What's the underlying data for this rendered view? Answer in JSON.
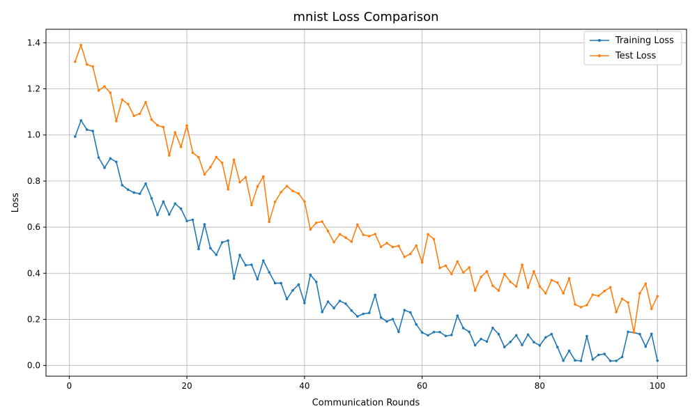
{
  "chart_data": {
    "type": "line",
    "title": "mnist Loss Comparison",
    "xlabel": "Communication Rounds",
    "ylabel": "Loss",
    "xlim": [
      -3.95,
      104.95
    ],
    "ylim": [
      -0.0465,
      1.4585
    ],
    "xticks": [
      0,
      20,
      40,
      60,
      80,
      100
    ],
    "yticks": [
      0.0,
      0.2,
      0.4,
      0.6,
      0.8,
      1.0,
      1.2,
      1.4
    ],
    "xtick_labels": [
      "0",
      "20",
      "40",
      "60",
      "80",
      "100"
    ],
    "ytick_labels": [
      "0.0",
      "0.2",
      "0.4",
      "0.6",
      "0.8",
      "1.0",
      "1.2",
      "1.4"
    ],
    "grid": true,
    "legend_position": "top-right",
    "series": [
      {
        "name": "Training Loss",
        "color": "#1f77b4",
        "x": [
          1,
          2,
          3,
          4,
          5,
          6,
          7,
          8,
          9,
          10,
          11,
          12,
          13,
          14,
          15,
          16,
          17,
          18,
          19,
          20,
          21,
          22,
          23,
          24,
          25,
          26,
          27,
          28,
          29,
          30,
          31,
          32,
          33,
          34,
          35,
          36,
          37,
          38,
          39,
          40,
          41,
          42,
          43,
          44,
          45,
          46,
          47,
          48,
          49,
          50,
          51,
          52,
          53,
          54,
          55,
          56,
          57,
          58,
          59,
          60,
          61,
          62,
          63,
          64,
          65,
          66,
          67,
          68,
          69,
          70,
          71,
          72,
          73,
          74,
          75,
          76,
          77,
          78,
          79,
          80,
          81,
          82,
          83,
          84,
          85,
          86,
          87,
          88,
          89,
          90,
          91,
          92,
          93,
          94,
          95,
          96,
          97,
          98,
          99,
          100
        ],
        "values": [
          0.993,
          1.063,
          1.023,
          1.017,
          0.902,
          0.858,
          0.898,
          0.883,
          0.782,
          0.763,
          0.75,
          0.745,
          0.789,
          0.725,
          0.653,
          0.711,
          0.655,
          0.702,
          0.68,
          0.627,
          0.632,
          0.505,
          0.612,
          0.509,
          0.48,
          0.534,
          0.542,
          0.377,
          0.479,
          0.435,
          0.437,
          0.374,
          0.455,
          0.404,
          0.357,
          0.357,
          0.288,
          0.326,
          0.351,
          0.271,
          0.393,
          0.363,
          0.232,
          0.277,
          0.249,
          0.28,
          0.268,
          0.238,
          0.213,
          0.224,
          0.228,
          0.306,
          0.208,
          0.191,
          0.201,
          0.146,
          0.24,
          0.23,
          0.178,
          0.143,
          0.131,
          0.145,
          0.145,
          0.128,
          0.132,
          0.216,
          0.162,
          0.146,
          0.088,
          0.115,
          0.104,
          0.163,
          0.136,
          0.08,
          0.102,
          0.131,
          0.089,
          0.134,
          0.101,
          0.087,
          0.122,
          0.136,
          0.08,
          0.021,
          0.064,
          0.022,
          0.02,
          0.127,
          0.026,
          0.046,
          0.05,
          0.02,
          0.02,
          0.037,
          0.146,
          0.143,
          0.136,
          0.082,
          0.137,
          0.021
        ]
      },
      {
        "name": "Test Loss",
        "color": "#ff7f0e",
        "x": [
          1,
          2,
          3,
          4,
          5,
          6,
          7,
          8,
          9,
          10,
          11,
          12,
          13,
          14,
          15,
          16,
          17,
          18,
          19,
          20,
          21,
          22,
          23,
          24,
          25,
          26,
          27,
          28,
          29,
          30,
          31,
          32,
          33,
          34,
          35,
          36,
          37,
          38,
          39,
          40,
          41,
          42,
          43,
          44,
          45,
          46,
          47,
          48,
          49,
          50,
          51,
          52,
          53,
          54,
          55,
          56,
          57,
          58,
          59,
          60,
          61,
          62,
          63,
          64,
          65,
          66,
          67,
          68,
          69,
          70,
          71,
          72,
          73,
          74,
          75,
          76,
          77,
          78,
          79,
          80,
          81,
          82,
          83,
          84,
          85,
          86,
          87,
          88,
          89,
          90,
          91,
          92,
          93,
          94,
          95,
          96,
          97,
          98,
          99,
          100
        ],
        "values": [
          1.318,
          1.39,
          1.306,
          1.297,
          1.193,
          1.21,
          1.183,
          1.06,
          1.153,
          1.134,
          1.083,
          1.092,
          1.142,
          1.066,
          1.042,
          1.034,
          0.911,
          1.011,
          0.948,
          1.041,
          0.923,
          0.903,
          0.829,
          0.86,
          0.904,
          0.879,
          0.764,
          0.893,
          0.795,
          0.817,
          0.696,
          0.776,
          0.82,
          0.623,
          0.71,
          0.752,
          0.778,
          0.757,
          0.746,
          0.711,
          0.59,
          0.619,
          0.624,
          0.583,
          0.535,
          0.569,
          0.555,
          0.537,
          0.611,
          0.567,
          0.561,
          0.57,
          0.515,
          0.531,
          0.514,
          0.519,
          0.471,
          0.484,
          0.52,
          0.447,
          0.569,
          0.548,
          0.423,
          0.433,
          0.397,
          0.451,
          0.403,
          0.425,
          0.325,
          0.384,
          0.408,
          0.346,
          0.325,
          0.397,
          0.363,
          0.343,
          0.437,
          0.338,
          0.408,
          0.343,
          0.313,
          0.37,
          0.36,
          0.313,
          0.378,
          0.265,
          0.253,
          0.262,
          0.307,
          0.302,
          0.323,
          0.339,
          0.232,
          0.289,
          0.273,
          0.143,
          0.313,
          0.355,
          0.246,
          0.3
        ]
      }
    ]
  }
}
